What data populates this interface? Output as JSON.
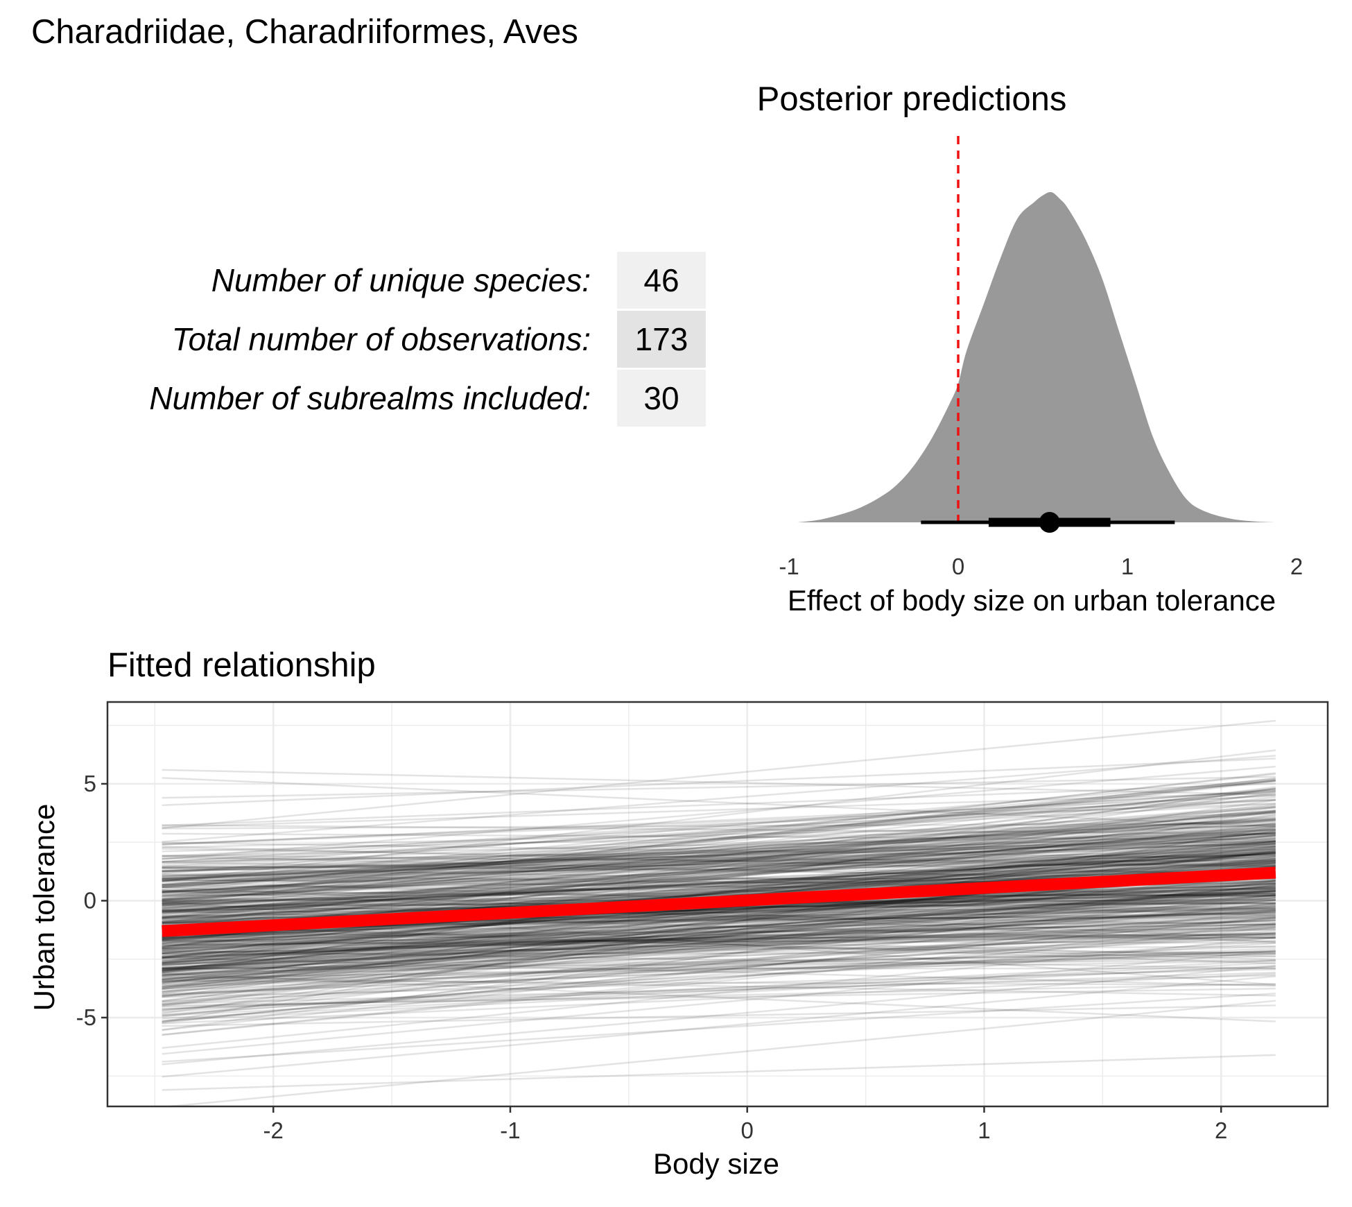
{
  "figure_title": "Charadriidae, Charadriiformes, Aves",
  "stats": [
    {
      "label": "Number of unique species:",
      "value": "46"
    },
    {
      "label": "Total number of observations:",
      "value": "173"
    },
    {
      "label": "Number of subrealms included:",
      "value": "30"
    }
  ],
  "colors": {
    "density_fill": "#999999",
    "zero_line": "#ee1111",
    "fit_line": "#ff0000",
    "draw_lines": "#000000",
    "grid": "#ebebeb",
    "stat_bg_light": "#f0f0f0",
    "stat_bg_dark": "#e3e3e3"
  },
  "chart_data": [
    {
      "type": "area",
      "title": "Posterior predictions",
      "xlabel": "Effect of body size on urban tolerance",
      "ylabel": "",
      "xlim": [
        -1.0,
        2.0
      ],
      "x_ticks": [
        "-1",
        "0",
        "1",
        "2"
      ],
      "grid": false,
      "density": {
        "x": [
          -0.95,
          -0.8,
          -0.6,
          -0.45,
          -0.35,
          -0.25,
          -0.15,
          -0.05,
          0.0,
          0.05,
          0.15,
          0.25,
          0.35,
          0.45,
          0.5,
          0.55,
          0.6,
          0.65,
          0.75,
          0.85,
          0.95,
          1.05,
          1.15,
          1.25,
          1.35,
          1.45,
          1.6,
          1.75,
          1.88
        ],
        "y": [
          0.0,
          0.01,
          0.04,
          0.08,
          0.12,
          0.18,
          0.26,
          0.36,
          0.42,
          0.52,
          0.66,
          0.8,
          0.92,
          0.97,
          0.99,
          1.0,
          0.98,
          0.95,
          0.86,
          0.74,
          0.58,
          0.42,
          0.26,
          0.15,
          0.07,
          0.035,
          0.012,
          0.003,
          0.0
        ]
      },
      "reference_line": {
        "x": 0,
        "style": "dashed"
      },
      "point_interval": {
        "point": 0.54,
        "inner": [
          0.18,
          0.9
        ],
        "outer": [
          -0.22,
          1.28
        ]
      }
    },
    {
      "type": "line",
      "title": "Fitted relationship",
      "xlabel": "Body size",
      "ylabel": "Urban tolerance",
      "xlim": [
        -2.7,
        2.45
      ],
      "ylim": [
        -8.8,
        8.5
      ],
      "x_ticks": [
        "-2",
        "-1",
        "0",
        "1",
        "2"
      ],
      "y_ticks": [
        "5",
        "0",
        "-5"
      ],
      "grid": true,
      "x_range": [
        -2.47,
        2.23
      ],
      "fit": {
        "x": [
          -2.47,
          2.23
        ],
        "y": [
          -1.3,
          1.2
        ]
      },
      "posterior_draws": {
        "count": 500,
        "intercept_mean": 0.0,
        "intercept_sd": 1.85,
        "slope_mean": 0.53,
        "slope_sd": 0.38
      },
      "notable_draws": [
        {
          "x": [
            -2.47,
            2.23
          ],
          "y": [
            -8.1,
            -6.6
          ]
        },
        {
          "x": [
            -2.47,
            2.23
          ],
          "y": [
            3.1,
            7.7
          ]
        },
        {
          "x": [
            -2.47,
            2.23
          ],
          "y": [
            4.4,
            5.3
          ]
        },
        {
          "x": [
            -2.47,
            2.23
          ],
          "y": [
            -7.0,
            -2.8
          ]
        }
      ]
    }
  ]
}
